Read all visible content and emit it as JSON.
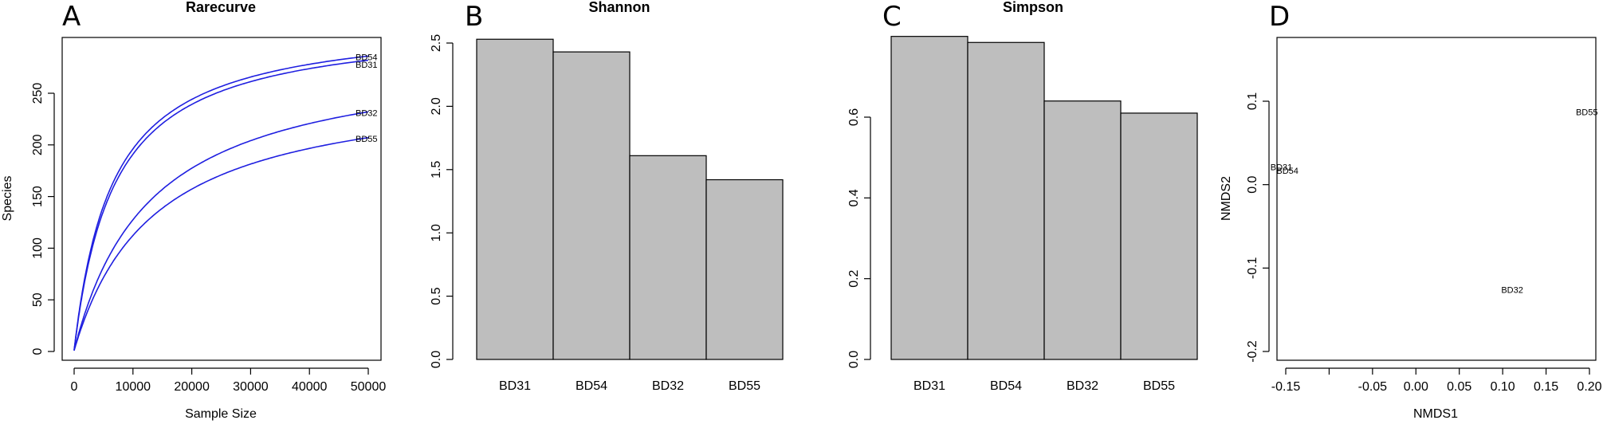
{
  "chart_data": [
    {
      "panel": "A",
      "type": "line",
      "title": "Rarecurve",
      "xlabel": "Sample Size",
      "ylabel": "Species",
      "xlim": [
        0,
        50000
      ],
      "ylim": [
        0,
        280
      ],
      "xticks": [
        0,
        10000,
        20000,
        30000,
        40000,
        50000
      ],
      "yticks": [
        0,
        50,
        100,
        150,
        200,
        250
      ],
      "line_color": "#1f1fe0",
      "series": [
        {
          "name": "BD54",
          "max_x": 50000,
          "max_y": 285
        },
        {
          "name": "BD31",
          "max_x": 50000,
          "max_y": 281
        },
        {
          "name": "BD32",
          "max_x": 50000,
          "max_y": 231
        },
        {
          "name": "BD55",
          "max_x": 50000,
          "max_y": 206
        }
      ]
    },
    {
      "panel": "B",
      "type": "bar",
      "title": "Shannon",
      "categories": [
        "BD31",
        "BD54",
        "BD32",
        "BD55"
      ],
      "values": [
        2.53,
        2.43,
        1.61,
        1.42
      ],
      "ylim": [
        0,
        2.5
      ],
      "yticks": [
        0.0,
        0.5,
        1.0,
        1.5,
        2.0,
        2.5
      ],
      "ytick_labels": [
        "0.0",
        "0.5",
        "1.0",
        "1.5",
        "2.0",
        "2.5"
      ],
      "bar_color": "#bebebe"
    },
    {
      "panel": "C",
      "type": "bar",
      "title": "Simpson",
      "categories": [
        "BD31",
        "BD54",
        "BD32",
        "BD55"
      ],
      "values": [
        0.8,
        0.785,
        0.64,
        0.61
      ],
      "ylim": [
        0,
        0.8
      ],
      "yticks": [
        0.0,
        0.2,
        0.4,
        0.6
      ],
      "ytick_labels": [
        "0.0",
        "0.2",
        "0.4",
        "0.6"
      ],
      "bar_color": "#bebebe"
    },
    {
      "panel": "D",
      "type": "scatter",
      "title": "",
      "xlabel": "NMDS1",
      "ylabel": "NMDS2",
      "xlim": [
        -0.16,
        0.2
      ],
      "ylim": [
        -0.2,
        0.15
      ],
      "xticks": [
        -0.15,
        -0.1,
        -0.05,
        0.0,
        0.05,
        0.1,
        0.15,
        0.2
      ],
      "xtick_labels": [
        "-0.15",
        "",
        "-0.05",
        "0.00",
        "0.05",
        "0.10",
        "0.15",
        "0.20"
      ],
      "yticks": [
        -0.2,
        -0.1,
        0.0,
        0.1
      ],
      "ytick_labels": [
        "-0.2",
        "-0.1",
        "0.0",
        "0.1"
      ],
      "points": [
        {
          "label": "BD31",
          "x": -0.155,
          "y": 0.02
        },
        {
          "label": "BD54",
          "x": -0.148,
          "y": 0.016
        },
        {
          "label": "BD32",
          "x": 0.111,
          "y": -0.127
        },
        {
          "label": "BD55",
          "x": 0.197,
          "y": 0.086
        }
      ]
    }
  ]
}
